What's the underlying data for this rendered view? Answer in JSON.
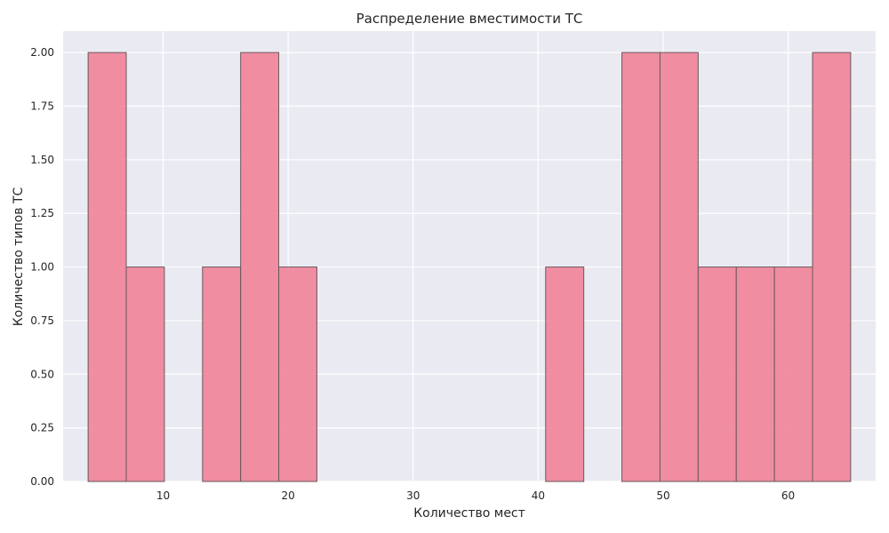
{
  "chart_data": {
    "type": "bar",
    "title": "Распределение вместимости ТС",
    "xlabel": "Количество мест",
    "ylabel": "Количество типов ТС",
    "xlim": [
      2.0,
      67.0
    ],
    "ylim": [
      0,
      2.1
    ],
    "x_ticks": [
      10,
      20,
      30,
      40,
      50,
      60
    ],
    "x_tick_labels": [
      "10",
      "20",
      "30",
      "40",
      "50",
      "60"
    ],
    "y_ticks": [
      0,
      0.25,
      0.5,
      0.75,
      1.0,
      1.25,
      1.5,
      1.75,
      2.0
    ],
    "y_tick_labels": [
      "0.00",
      "0.25",
      "0.50",
      "0.75",
      "1.00",
      "1.25",
      "1.50",
      "1.75",
      "2.00"
    ],
    "grid": true,
    "bins": [
      {
        "start": 4.0,
        "end": 7.05,
        "count": 2
      },
      {
        "start": 7.05,
        "end": 10.1,
        "count": 1
      },
      {
        "start": 10.1,
        "end": 13.15,
        "count": 0
      },
      {
        "start": 13.15,
        "end": 16.2,
        "count": 1
      },
      {
        "start": 16.2,
        "end": 19.25,
        "count": 2
      },
      {
        "start": 19.25,
        "end": 22.3,
        "count": 1
      },
      {
        "start": 22.3,
        "end": 25.35,
        "count": 0
      },
      {
        "start": 25.35,
        "end": 28.4,
        "count": 0
      },
      {
        "start": 28.4,
        "end": 31.45,
        "count": 0
      },
      {
        "start": 31.45,
        "end": 34.5,
        "count": 0
      },
      {
        "start": 34.5,
        "end": 37.55,
        "count": 0
      },
      {
        "start": 37.55,
        "end": 40.6,
        "count": 0
      },
      {
        "start": 40.6,
        "end": 43.65,
        "count": 1
      },
      {
        "start": 43.65,
        "end": 46.7,
        "count": 0
      },
      {
        "start": 46.7,
        "end": 49.75,
        "count": 2
      },
      {
        "start": 49.75,
        "end": 52.8,
        "count": 2
      },
      {
        "start": 52.8,
        "end": 55.85,
        "count": 1
      },
      {
        "start": 55.85,
        "end": 58.9,
        "count": 1
      },
      {
        "start": 58.9,
        "end": 61.95,
        "count": 1
      },
      {
        "start": 61.95,
        "end": 65.0,
        "count": 2
      }
    ],
    "colors": {
      "bar_fill": "#f07f95",
      "bar_edge": "#6a5a5e",
      "plot_background": "#eaeaf2",
      "grid": "#ffffff",
      "text": "#262626"
    }
  }
}
